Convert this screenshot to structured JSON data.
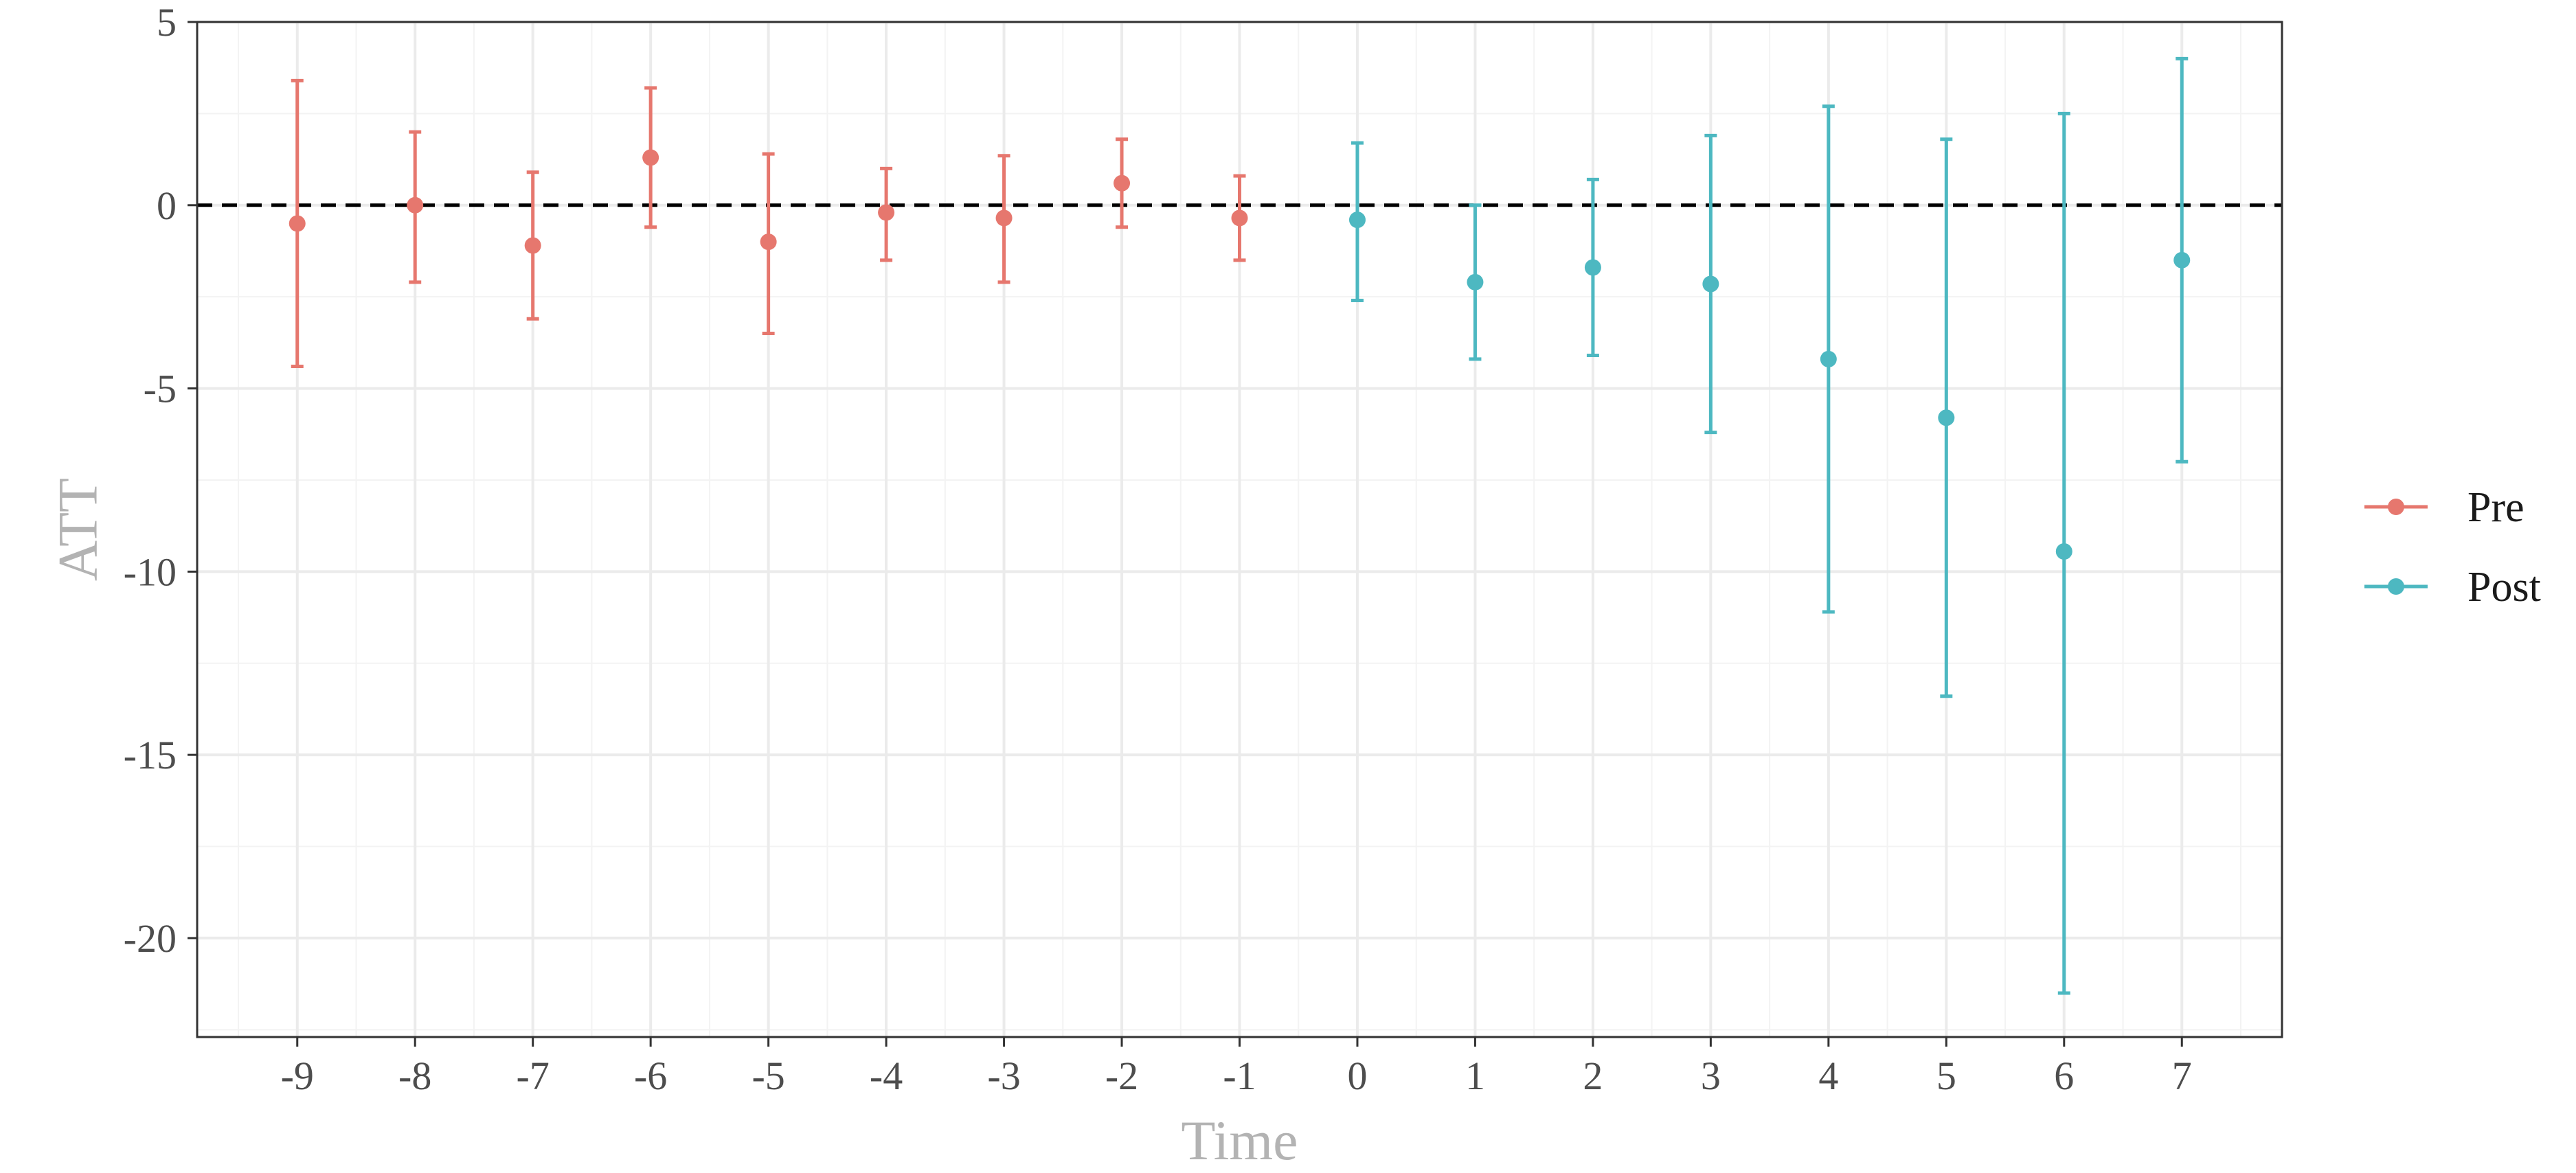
{
  "chart_data": {
    "type": "scatter",
    "xlabel": "Time",
    "ylabel": "ATT",
    "xlim": [
      -9.85,
      7.85
    ],
    "ylim": [
      -22.7,
      5.0
    ],
    "x_ticks": [
      -9,
      -8,
      -7,
      -6,
      -5,
      -4,
      -3,
      -2,
      -1,
      0,
      1,
      2,
      3,
      4,
      5,
      6,
      7
    ],
    "y_ticks": [
      5,
      0,
      -5,
      -10,
      -15,
      -20
    ],
    "x_tick_labels": [
      "-9",
      "-8",
      "-7",
      "-6",
      "-5",
      "-4",
      "-3",
      "-2",
      "-1",
      "0",
      "1",
      "2",
      "3",
      "4",
      "5",
      "6",
      "7"
    ],
    "y_tick_labels": [
      "5",
      "0",
      "-5",
      "-10",
      "-15",
      "-20"
    ],
    "grid": true,
    "reference_line": {
      "y": 0,
      "style": "dashed",
      "color": "#000000"
    },
    "legend": {
      "position": "right"
    },
    "series": [
      {
        "name": "Pre",
        "color": "#E6776E",
        "points": [
          {
            "x": -9,
            "y": -0.5,
            "lower": -4.4,
            "upper": 3.4
          },
          {
            "x": -8,
            "y": 0.0,
            "lower": -2.1,
            "upper": 2.0
          },
          {
            "x": -7,
            "y": -1.1,
            "lower": -3.1,
            "upper": 0.9
          },
          {
            "x": -6,
            "y": 1.3,
            "lower": -0.6,
            "upper": 3.2
          },
          {
            "x": -5,
            "y": -1.0,
            "lower": -3.5,
            "upper": 1.4
          },
          {
            "x": -4,
            "y": -0.2,
            "lower": -1.5,
            "upper": 1.0
          },
          {
            "x": -3,
            "y": -0.35,
            "lower": -2.1,
            "upper": 1.35
          },
          {
            "x": -2,
            "y": 0.6,
            "lower": -0.6,
            "upper": 1.8
          },
          {
            "x": -1,
            "y": -0.35,
            "lower": -1.5,
            "upper": 0.8
          }
        ]
      },
      {
        "name": "Post",
        "color": "#4DB8C1",
        "points": [
          {
            "x": 0,
            "y": -0.4,
            "lower": -2.6,
            "upper": 1.7
          },
          {
            "x": 1,
            "y": -2.1,
            "lower": -4.2,
            "upper": 0.0
          },
          {
            "x": 2,
            "y": -1.7,
            "lower": -4.1,
            "upper": 0.7
          },
          {
            "x": 3,
            "y": -2.15,
            "lower": -6.2,
            "upper": 1.9
          },
          {
            "x": 4,
            "y": -4.2,
            "lower": -11.1,
            "upper": 2.7
          },
          {
            "x": 5,
            "y": -5.8,
            "lower": -13.4,
            "upper": 1.8
          },
          {
            "x": 6,
            "y": -9.45,
            "lower": -21.5,
            "upper": 2.5
          },
          {
            "x": 7,
            "y": -1.5,
            "lower": -7.0,
            "upper": 4.0
          }
        ]
      }
    ]
  }
}
